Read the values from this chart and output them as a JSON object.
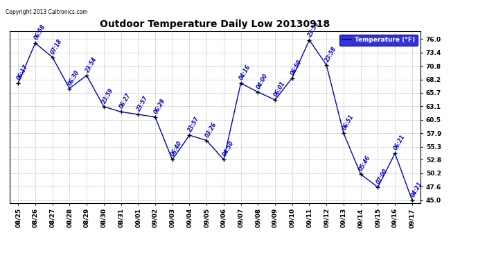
{
  "title": "Outdoor Temperature Daily Low 20130918",
  "copyright": "Copyright 2013 Caltronics.com",
  "legend_label": "Temperature (°F)",
  "x_labels": [
    "08/25",
    "08/26",
    "08/27",
    "08/28",
    "08/29",
    "08/30",
    "08/31",
    "09/01",
    "09/02",
    "09/03",
    "09/04",
    "09/05",
    "09/06",
    "09/07",
    "09/08",
    "09/09",
    "09/10",
    "09/11",
    "09/12",
    "09/13",
    "09/14",
    "09/15",
    "09/16",
    "09/17"
  ],
  "y_values": [
    67.5,
    75.2,
    72.5,
    66.5,
    69.0,
    63.0,
    62.0,
    61.5,
    61.0,
    52.8,
    57.5,
    56.5,
    52.8,
    67.5,
    65.8,
    64.3,
    68.5,
    75.8,
    71.0,
    57.9,
    50.0,
    47.5,
    54.0,
    45.0
  ],
  "point_labels": [
    "06:17",
    "06:58",
    "07:18",
    "06:30",
    "23:54",
    "23:59",
    "06:27",
    "23:57",
    "06:29",
    "06:40",
    "23:57",
    "03:26",
    "04:50",
    "04:16",
    "04:00",
    "06:01",
    "06:50",
    "23:56",
    "23:58",
    "06:51",
    "05:46",
    "07:00",
    "06:21",
    "04:21"
  ],
  "yticks": [
    45.0,
    47.6,
    50.2,
    52.8,
    55.3,
    57.9,
    60.5,
    63.1,
    65.7,
    68.2,
    70.8,
    73.4,
    76.0
  ],
  "line_color": "#0000bb",
  "bg_color": "#ffffff",
  "grid_color": "#bbbbbb",
  "label_color": "#0000cc",
  "title_color": "#000000",
  "ylim": [
    44.5,
    77.5
  ],
  "legend_bg": "#0000cc",
  "legend_text": "#ffffff",
  "fig_width": 6.9,
  "fig_height": 3.75,
  "dpi": 100
}
